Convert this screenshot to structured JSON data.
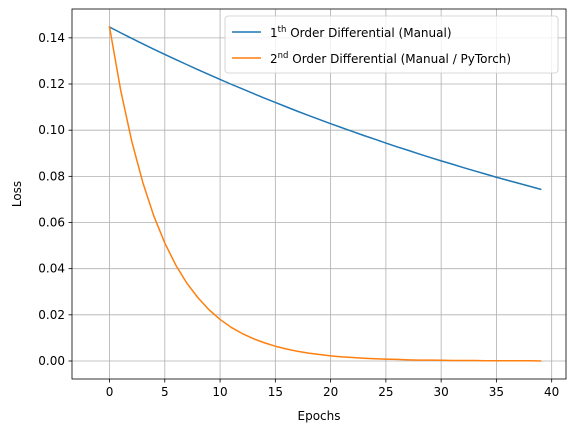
{
  "chart_data": {
    "type": "line",
    "title": "",
    "xlabel": "Epochs",
    "ylabel": "Loss",
    "xlim": [
      -3.395,
      41.295
    ],
    "ylim": [
      -0.0078,
      0.1525
    ],
    "xticks": [
      0,
      5,
      10,
      15,
      20,
      25,
      30,
      35,
      40
    ],
    "xtick_labels": [
      "0",
      "5",
      "10",
      "15",
      "20",
      "25",
      "30",
      "35",
      "40"
    ],
    "yticks": [
      0.0,
      0.02,
      0.04,
      0.06,
      0.08,
      0.1,
      0.12,
      0.14
    ],
    "ytick_labels": [
      "0.00",
      "0.02",
      "0.04",
      "0.06",
      "0.08",
      "0.10",
      "0.12",
      "0.14"
    ],
    "grid": true,
    "legend_position": "top-right",
    "series": [
      {
        "name": "1th Order Differential (Manual)",
        "label_parts": {
          "pre": "1",
          "sup": "th",
          "post": " Order Differential (Manual)"
        },
        "color": "#1f77b4",
        "x": [
          0,
          1,
          2,
          3,
          4,
          5,
          6,
          7,
          8,
          9,
          10,
          11,
          12,
          13,
          14,
          15,
          16,
          17,
          18,
          19,
          20,
          21,
          22,
          23,
          24,
          25,
          26,
          27,
          28,
          29,
          30,
          31,
          32,
          33,
          34,
          35,
          36,
          37,
          38,
          39
        ],
        "y": [
          0.1447,
          0.1422,
          0.1398,
          0.1374,
          0.1351,
          0.1328,
          0.1306,
          0.1284,
          0.1262,
          0.1241,
          0.122,
          0.1199,
          0.1179,
          0.1159,
          0.1139,
          0.112,
          0.1101,
          0.1082,
          0.1064,
          0.1046,
          0.1028,
          0.1011,
          0.0994,
          0.0977,
          0.0961,
          0.0944,
          0.0928,
          0.0913,
          0.0897,
          0.0882,
          0.0867,
          0.0853,
          0.0838,
          0.0824,
          0.081,
          0.0796,
          0.0783,
          0.077,
          0.0757,
          0.0744
        ]
      },
      {
        "name": "2nd Order Differential (Manual / PyTorch)",
        "label_parts": {
          "pre": "2",
          "sup": "nd",
          "post": " Order Differential (Manual / PyTorch)"
        },
        "color": "#ff7f0e",
        "x": [
          0,
          1,
          2,
          3,
          4,
          5,
          6,
          7,
          8,
          9,
          10,
          11,
          12,
          13,
          14,
          15,
          16,
          17,
          18,
          19,
          20,
          21,
          22,
          23,
          24,
          25,
          26,
          27,
          28,
          29,
          30,
          31,
          32,
          33,
          34,
          35,
          36,
          37,
          38,
          39
        ],
        "y": [
          0.1447,
          0.1175,
          0.0954,
          0.0775,
          0.0629,
          0.0511,
          0.0415,
          0.0337,
          0.0274,
          0.0222,
          0.018,
          0.0146,
          0.0119,
          0.0097,
          0.0079,
          0.0064,
          0.0052,
          0.0042,
          0.0034,
          0.0028,
          0.0022,
          0.0018,
          0.0015,
          0.0012,
          0.001,
          0.0008,
          0.0007,
          0.0005,
          0.0004,
          0.0004,
          0.0003,
          0.0002,
          0.0002,
          0.0002,
          0.0001,
          0.0001,
          0.0001,
          0.0001,
          0.0001,
          0.0
        ]
      }
    ]
  }
}
